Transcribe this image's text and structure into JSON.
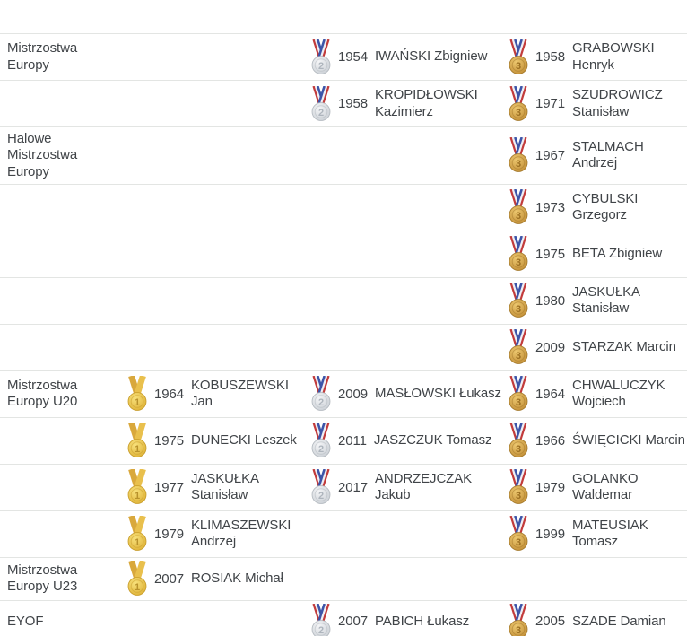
{
  "page": {
    "background": "#ffffff",
    "text_color": "#404448",
    "divider_color": "#e3e5e3"
  },
  "icons": {
    "gold": {
      "name": "gold-medal-icon",
      "label": "1",
      "medal_light": "#f8e17c",
      "medal_dark": "#ddb033",
      "ring": "#c79c2a",
      "number_color": "#b8922c",
      "ribbon": [
        "#d9a83c",
        "#e9c04d"
      ]
    },
    "silver": {
      "name": "silver-medal-icon",
      "label": "2",
      "medal_light": "#f4f5f7",
      "medal_dark": "#c9ced4",
      "ring": "#b2b8be",
      "number_color": "#aeb5bd",
      "ribbon": [
        "#c23b3b",
        "#efeff4",
        "#3d55a8"
      ]
    },
    "bronze": {
      "name": "bronze-medal-icon",
      "label": "3",
      "medal_light": "#ecc76f",
      "medal_dark": "#c08c34",
      "ring": "#a3782a",
      "number_color": "#9b6f22",
      "ribbon": [
        "#c23b3b",
        "#efeff4",
        "#3d55a8"
      ]
    }
  },
  "table": {
    "columns": [
      "category",
      "gold",
      "silver",
      "bronze"
    ],
    "rows": [
      {
        "category": "Mistrzostwa\nEuropy",
        "gold": null,
        "silver": {
          "year": "1954",
          "name": "IWAŃSKI Zbigniew"
        },
        "bronze": {
          "year": "1958",
          "name": "GRABOWSKI\nHenryk"
        }
      },
      {
        "category": "",
        "gold": null,
        "silver": {
          "year": "1958",
          "name": "KROPIDŁOWSKI\nKazimierz"
        },
        "bronze": {
          "year": "1971",
          "name": "SZUDROWICZ\nStanisław"
        }
      },
      {
        "category": "Halowe\nMistrzostwa\nEuropy",
        "gold": null,
        "silver": null,
        "bronze": {
          "year": "1967",
          "name": "STALMACH\nAndrzej"
        }
      },
      {
        "category": "",
        "gold": null,
        "silver": null,
        "bronze": {
          "year": "1973",
          "name": "CYBULSKI\nGrzegorz"
        }
      },
      {
        "category": "",
        "gold": null,
        "silver": null,
        "bronze": {
          "year": "1975",
          "name": "BETA Zbigniew"
        }
      },
      {
        "category": "",
        "gold": null,
        "silver": null,
        "bronze": {
          "year": "1980",
          "name": "JASKUŁKA\nStanisław"
        }
      },
      {
        "category": "",
        "gold": null,
        "silver": null,
        "bronze": {
          "year": "2009",
          "name": "STARZAK Marcin"
        }
      },
      {
        "category": "Mistrzostwa\nEuropy U20",
        "gold": {
          "year": "1964",
          "name": "KOBUSZEWSKI Jan"
        },
        "silver": {
          "year": "2009",
          "name": "MASŁOWSKI Łukasz"
        },
        "bronze": {
          "year": "1964",
          "name": "CHWALUCZYK\nWojciech"
        }
      },
      {
        "category": "",
        "gold": {
          "year": "1975",
          "name": "DUNECKI Leszek"
        },
        "silver": {
          "year": "2011",
          "name": "JASZCZUK Tomasz"
        },
        "bronze": {
          "year": "1966",
          "name": "ŚWIĘCICKI Marcin"
        }
      },
      {
        "category": "",
        "gold": {
          "year": "1977",
          "name": "JASKUŁKA\nStanisław"
        },
        "silver": {
          "year": "2017",
          "name": "ANDRZEJCZAK\nJakub"
        },
        "bronze": {
          "year": "1979",
          "name": "GOLANKO\nWaldemar"
        }
      },
      {
        "category": "",
        "gold": {
          "year": "1979",
          "name": "KLIMASZEWSKI\nAndrzej"
        },
        "silver": null,
        "bronze": {
          "year": "1999",
          "name": "MATEUSIAK\nTomasz"
        }
      },
      {
        "category": "Mistrzostwa\nEuropy U23",
        "gold": {
          "year": "2007",
          "name": "ROSIAK Michał"
        },
        "silver": null,
        "bronze": null
      },
      {
        "category": "EYOF",
        "gold": null,
        "silver": {
          "year": "2007",
          "name": "PABICH Łukasz"
        },
        "bronze": {
          "year": "2005",
          "name": "SZADE Damian"
        }
      }
    ]
  }
}
